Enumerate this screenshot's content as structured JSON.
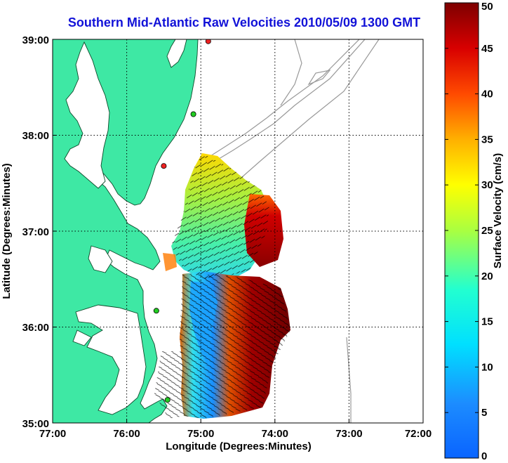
{
  "title": "Southern Mid-Atlantic Raw Velocities 2010/05/09 1300 GMT",
  "axes": {
    "xlabel": "Longitude (Degrees:Minutes)",
    "ylabel": "Latitude (Degrees:Minutes)",
    "x_ticks": [
      "77:00",
      "76:00",
      "75:00",
      "74:00",
      "73:00",
      "72:00"
    ],
    "y_ticks": [
      "39:00",
      "38:00",
      "37:00",
      "36:00",
      "35:00"
    ],
    "x_range_deg_west": [
      77,
      72
    ],
    "y_range_deg_north": [
      35,
      39
    ],
    "grid": "dotted"
  },
  "colorbar": {
    "label": "Surface Velocity (cm/s)",
    "ticks": [
      "50",
      "45",
      "40",
      "35",
      "30",
      "25",
      "20",
      "15",
      "10",
      "5",
      "0"
    ],
    "range": [
      0,
      50
    ],
    "colormap": "jet"
  },
  "colors": {
    "land": "#3ee8a4",
    "title": "#1212d8",
    "station_green": "#22cc22",
    "station_red": "#ee2222"
  },
  "stations": [
    {
      "lon": 74.9,
      "lat": 38.98,
      "status": "red"
    },
    {
      "lon": 75.1,
      "lat": 38.22,
      "status": "green"
    },
    {
      "lon": 75.5,
      "lat": 37.68,
      "status": "red"
    },
    {
      "lon": 75.6,
      "lat": 36.17,
      "status": "green"
    },
    {
      "lon": 75.45,
      "lat": 35.24,
      "status": "green"
    }
  ]
}
